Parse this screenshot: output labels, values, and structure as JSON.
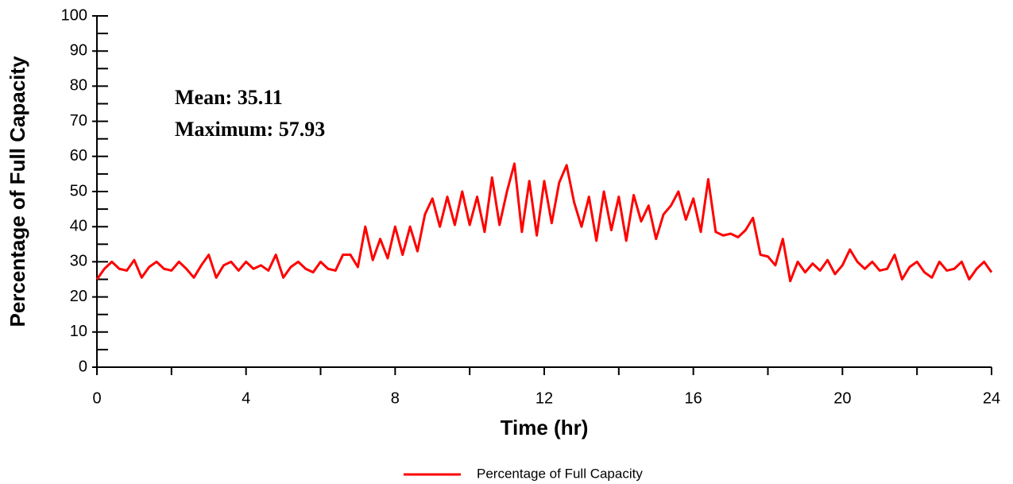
{
  "chart_data": {
    "type": "line",
    "x_label": "Time (hr)",
    "y_label": "Percentage of Full Capacity",
    "annotations": [
      "Mean: 35.11",
      "Maximum: 57.93"
    ],
    "x": [
      0,
      0.2,
      0.4,
      0.6,
      0.8,
      1,
      1.2,
      1.4,
      1.6,
      1.8,
      2,
      2.2,
      2.4,
      2.6,
      2.8,
      3,
      3.2,
      3.4,
      3.6,
      3.8,
      4,
      4.2,
      4.4,
      4.6,
      4.8,
      5,
      5.2,
      5.4,
      5.6,
      5.8,
      6,
      6.2,
      6.4,
      6.6,
      6.8,
      7,
      7.2,
      7.4,
      7.6,
      7.8,
      8,
      8.2,
      8.4,
      8.6,
      8.8,
      9,
      9.2,
      9.4,
      9.6,
      9.8,
      10,
      10.2,
      10.4,
      10.6,
      10.8,
      11,
      11.2,
      11.4,
      11.6,
      11.8,
      12,
      12.2,
      12.4,
      12.6,
      12.8,
      13,
      13.2,
      13.4,
      13.6,
      13.8,
      14,
      14.2,
      14.4,
      14.6,
      14.8,
      15,
      15.2,
      15.4,
      15.6,
      15.8,
      16,
      16.2,
      16.4,
      16.6,
      16.8,
      17,
      17.2,
      17.4,
      17.6,
      17.8,
      18,
      18.2,
      18.4,
      18.6,
      18.8,
      19,
      19.2,
      19.4,
      19.6,
      19.8,
      20,
      20.2,
      20.4,
      20.6,
      20.8,
      21,
      21.2,
      21.4,
      21.6,
      21.8,
      22,
      22.2,
      22.4,
      22.6,
      22.8,
      23,
      23.2,
      23.4,
      23.6,
      23.8,
      24
    ],
    "series": [
      {
        "name": "Percentage of Full Capacity",
        "color": "#ff0000",
        "values": [
          25,
          28,
          30,
          28,
          27.5,
          30.5,
          25.5,
          28.5,
          30,
          28,
          27.5,
          30,
          28,
          25.5,
          29,
          32,
          25.5,
          29,
          30,
          27.5,
          30,
          28,
          29,
          27.5,
          32,
          25.5,
          28.5,
          30,
          28,
          27,
          30,
          28,
          27.5,
          32,
          32,
          28.5,
          40,
          30.5,
          36.5,
          31,
          40,
          32,
          40,
          33,
          43.5,
          48,
          40,
          48.5,
          40.5,
          50,
          40.5,
          48.5,
          38.5,
          54,
          40.5,
          50,
          57.93,
          38.5,
          53,
          37.5,
          53,
          41,
          52.5,
          57.5,
          47,
          40,
          48.5,
          36,
          50,
          39,
          48.5,
          36,
          49,
          41.5,
          46,
          36.5,
          43.5,
          46,
          50,
          42,
          48,
          38.5,
          53.5,
          38.5,
          37.5,
          38,
          37,
          39,
          42.5,
          32,
          31.5,
          29,
          36.5,
          24.5,
          30,
          27,
          29.5,
          27.5,
          30.5,
          26.5,
          29,
          33.5,
          30,
          28,
          30,
          27.5,
          28,
          32,
          25,
          28.5,
          30,
          27,
          25.5,
          30,
          27.5,
          28,
          30,
          25,
          28,
          30,
          27
        ]
      }
    ],
    "xlim": [
      0,
      24
    ],
    "xticks": [
      0,
      4,
      8,
      12,
      16,
      20,
      24
    ],
    "ylim": [
      0,
      100
    ],
    "yticks": [
      0,
      10,
      20,
      30,
      40,
      50,
      60,
      70,
      80,
      90,
      100
    ]
  }
}
